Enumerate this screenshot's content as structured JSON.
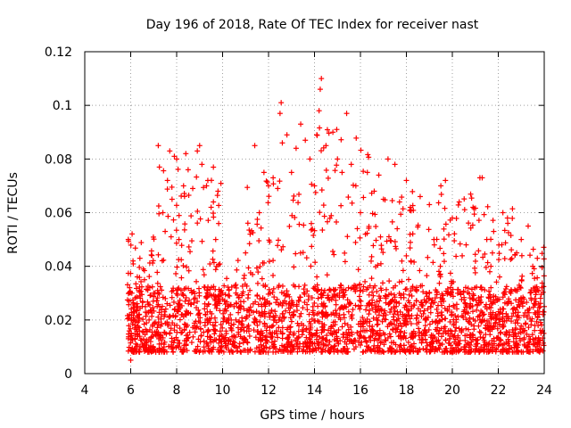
{
  "chart_data": {
    "type": "scatter",
    "title": "Day 196 of 2018, Rate Of TEC Index for receiver nast",
    "xlabel": "GPS time / hours",
    "ylabel": "ROTI / TECUs",
    "xlim": [
      4,
      24
    ],
    "ylim": [
      0,
      0.12
    ],
    "xticks": [
      4,
      6,
      8,
      10,
      12,
      14,
      16,
      18,
      20,
      22,
      24
    ],
    "yticks": [
      0,
      0.02,
      0.04,
      0.06,
      0.08,
      0.1,
      0.12
    ],
    "xtick_labels": [
      "4",
      "6",
      "8",
      "10",
      "12",
      "14",
      "16",
      "18",
      "20",
      "22",
      "24"
    ],
    "ytick_labels": [
      "0",
      "0.02",
      "0.04",
      "0.06",
      "0.08",
      "0.1",
      "0.12"
    ],
    "grid": true,
    "marker": "+",
    "series_color": "#ff0000",
    "data_start_hour": 5.85,
    "data_end_hour": 24.0,
    "series": [
      {
        "name": "ROTI",
        "points": [
          [
            5.9,
            0.013
          ],
          [
            5.95,
            0.022
          ],
          [
            6.0,
            0.005
          ],
          [
            6.05,
            0.03
          ],
          [
            6.1,
            0.042
          ],
          [
            6.2,
            0.018
          ],
          [
            6.3,
            0.025
          ],
          [
            6.4,
            0.043
          ],
          [
            6.5,
            0.011
          ],
          [
            6.6,
            0.035
          ],
          [
            6.8,
            0.02
          ],
          [
            7.0,
            0.03
          ],
          [
            7.2,
            0.085
          ],
          [
            7.25,
            0.077
          ],
          [
            7.4,
            0.06
          ],
          [
            7.5,
            0.053
          ],
          [
            7.6,
            0.072
          ],
          [
            7.7,
            0.083
          ],
          [
            7.8,
            0.065
          ],
          [
            7.9,
            0.081
          ],
          [
            8.0,
            0.08
          ],
          [
            8.1,
            0.05
          ],
          [
            8.3,
            0.07
          ],
          [
            8.4,
            0.082
          ],
          [
            8.5,
            0.076
          ],
          [
            8.7,
            0.069
          ],
          [
            8.9,
            0.083
          ],
          [
            9.0,
            0.085
          ],
          [
            9.1,
            0.078
          ],
          [
            9.3,
            0.07
          ],
          [
            9.5,
            0.062
          ],
          [
            9.6,
            0.064
          ],
          [
            9.7,
            0.05
          ],
          [
            9.8,
            0.068
          ],
          [
            10.0,
            0.03
          ],
          [
            10.2,
            0.02
          ],
          [
            10.5,
            0.025
          ],
          [
            11.0,
            0.045
          ],
          [
            11.2,
            0.052
          ],
          [
            11.4,
            0.085
          ],
          [
            11.6,
            0.06
          ],
          [
            11.8,
            0.075
          ],
          [
            12.0,
            0.07
          ],
          [
            12.2,
            0.073
          ],
          [
            12.4,
            0.069
          ],
          [
            12.5,
            0.097
          ],
          [
            12.55,
            0.101
          ],
          [
            12.6,
            0.086
          ],
          [
            12.8,
            0.089
          ],
          [
            13.0,
            0.075
          ],
          [
            13.2,
            0.084
          ],
          [
            13.4,
            0.093
          ],
          [
            13.6,
            0.087
          ],
          [
            13.8,
            0.08
          ],
          [
            14.0,
            0.07
          ],
          [
            14.1,
            0.089
          ],
          [
            14.2,
            0.098
          ],
          [
            14.25,
            0.106
          ],
          [
            14.3,
            0.11
          ],
          [
            14.5,
            0.085
          ],
          [
            14.8,
            0.09
          ],
          [
            15.0,
            0.08
          ],
          [
            15.2,
            0.075
          ],
          [
            15.4,
            0.097
          ],
          [
            15.6,
            0.078
          ],
          [
            15.8,
            0.07
          ],
          [
            16.0,
            0.06
          ],
          [
            16.3,
            0.075
          ],
          [
            16.6,
            0.068
          ],
          [
            16.8,
            0.074
          ],
          [
            17.0,
            0.065
          ],
          [
            17.2,
            0.08
          ],
          [
            17.5,
            0.078
          ],
          [
            17.7,
            0.064
          ],
          [
            18.0,
            0.072
          ],
          [
            18.2,
            0.061
          ],
          [
            18.6,
            0.066
          ],
          [
            19.0,
            0.063
          ],
          [
            19.2,
            0.05
          ],
          [
            19.5,
            0.07
          ],
          [
            19.7,
            0.072
          ],
          [
            20.0,
            0.058
          ],
          [
            20.3,
            0.064
          ],
          [
            20.6,
            0.048
          ],
          [
            20.9,
            0.062
          ],
          [
            21.2,
            0.073
          ],
          [
            21.3,
            0.073
          ],
          [
            21.5,
            0.05
          ],
          [
            21.8,
            0.053
          ],
          [
            22.2,
            0.06
          ],
          [
            22.4,
            0.058
          ],
          [
            22.8,
            0.045
          ],
          [
            23.0,
            0.05
          ],
          [
            23.3,
            0.055
          ],
          [
            23.5,
            0.04
          ],
          [
            23.7,
            0.043
          ],
          [
            23.9,
            0.032
          ],
          [
            23.95,
            0.022
          ],
          [
            23.98,
            0.015
          ],
          [
            24.0,
            0.025
          ]
        ]
      }
    ]
  }
}
